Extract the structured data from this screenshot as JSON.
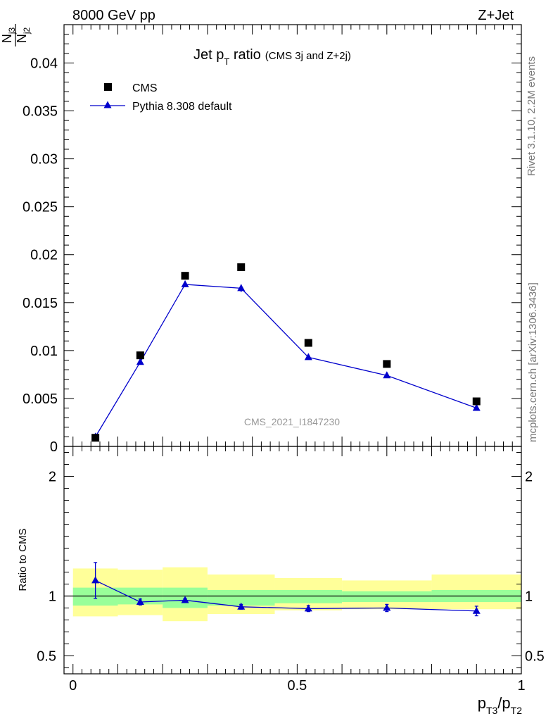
{
  "header": {
    "left_label": "8000 GeV pp",
    "right_label": "Z+Jet",
    "side_label_top": "Rivet 3.1.10,  2.2M events",
    "side_label_bottom": "mcplots.cern.ch [arXiv:1306.3436]",
    "watermark": "CMS_2021_I1847230"
  },
  "chart_data": [
    {
      "type": "scatter",
      "title": "Jet p",
      "title_sub": "T",
      "title_rest": " ratio",
      "title_note": "(CMS 3j and Z+2j)",
      "ylabel_num": "N",
      "ylabel_num_sub": "j3",
      "ylabel_den": "N",
      "ylabel_den_sub": "j2",
      "xlim": [
        -0.02,
        1.0
      ],
      "ylim": [
        0,
        0.044
      ],
      "yticks": [
        0,
        0.005,
        0.01,
        0.015,
        0.02,
        0.025,
        0.03,
        0.035,
        0.04
      ],
      "ytick_labels": [
        "0",
        "0.005",
        "0.01",
        "0.015",
        "0.02",
        "0.025",
        "0.03",
        "0.035",
        "0.04"
      ],
      "legend_position": "top-left",
      "series": [
        {
          "name": "CMS",
          "color": "#000000",
          "marker": "square",
          "x": [
            0.05,
            0.15,
            0.25,
            0.375,
            0.525,
            0.7,
            0.9
          ],
          "y": [
            0.0009,
            0.0095,
            0.0178,
            0.0187,
            0.0108,
            0.0086,
            0.0047
          ]
        },
        {
          "name": "Pythia 8.308 default",
          "color": "#0000cc",
          "marker": "triangle",
          "x": [
            0.05,
            0.15,
            0.25,
            0.375,
            0.525,
            0.7,
            0.9
          ],
          "y": [
            0.001,
            0.0088,
            0.0169,
            0.0165,
            0.0093,
            0.0074,
            0.004
          ],
          "yerr": [
            0.0001,
            0.0002,
            0.0003,
            0.0004,
            0.0002,
            0.0002,
            0.0002
          ]
        }
      ]
    },
    {
      "type": "scatter",
      "ylabel": "Ratio to CMS",
      "xlabel_p1": "p",
      "xlabel_s1": "T3",
      "xlabel_slash": "/p",
      "xlabel_s2": "T2",
      "xlim": [
        -0.02,
        1.0
      ],
      "ylim": [
        0.35,
        2.25
      ],
      "yticks": [
        0.5,
        1,
        2
      ],
      "ytick_labels": [
        "0.5",
        "1",
        "2"
      ],
      "xticks": [
        0,
        0.5,
        1
      ],
      "xtick_labels": [
        "0",
        "0.5",
        "1"
      ],
      "bands": [
        {
          "x0": 0.0,
          "x1": 0.1,
          "yellow": [
            0.83,
            1.23
          ],
          "green": [
            0.92,
            1.07
          ]
        },
        {
          "x0": 0.1,
          "x1": 0.2,
          "yellow": [
            0.84,
            1.22
          ],
          "green": [
            0.93,
            1.07
          ]
        },
        {
          "x0": 0.2,
          "x1": 0.3,
          "yellow": [
            0.79,
            1.24
          ],
          "green": [
            0.9,
            1.07
          ]
        },
        {
          "x0": 0.3,
          "x1": 0.45,
          "yellow": [
            0.85,
            1.18
          ],
          "green": [
            0.92,
            1.05
          ]
        },
        {
          "x0": 0.45,
          "x1": 0.6,
          "yellow": [
            0.88,
            1.15
          ],
          "green": [
            0.94,
            1.05
          ]
        },
        {
          "x0": 0.6,
          "x1": 0.8,
          "yellow": [
            0.89,
            1.13
          ],
          "green": [
            0.95,
            1.04
          ]
        },
        {
          "x0": 0.8,
          "x1": 1.0,
          "yellow": [
            0.89,
            1.18
          ],
          "green": [
            0.95,
            1.05
          ]
        }
      ],
      "series": [
        {
          "name": "Pythia 8.308 default",
          "color": "#0000cc",
          "marker": "triangle",
          "x": [
            0.05,
            0.15,
            0.25,
            0.375,
            0.525,
            0.7,
            0.9
          ],
          "y": [
            1.13,
            0.95,
            0.965,
            0.91,
            0.895,
            0.9,
            0.875
          ],
          "yerr": [
            0.15,
            0.025,
            0.015,
            0.02,
            0.025,
            0.03,
            0.04
          ]
        }
      ]
    }
  ]
}
